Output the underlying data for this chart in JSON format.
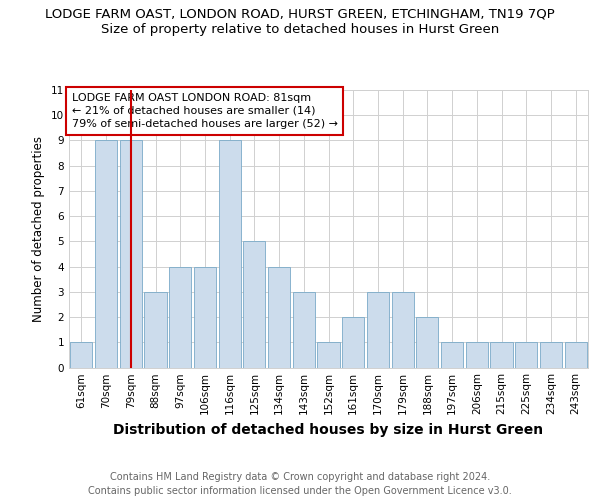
{
  "title": "LODGE FARM OAST, LONDON ROAD, HURST GREEN, ETCHINGHAM, TN19 7QP",
  "subtitle": "Size of property relative to detached houses in Hurst Green",
  "xlabel": "Distribution of detached houses by size in Hurst Green",
  "ylabel": "Number of detached properties",
  "categories": [
    "61sqm",
    "70sqm",
    "79sqm",
    "88sqm",
    "97sqm",
    "106sqm",
    "116sqm",
    "125sqm",
    "134sqm",
    "143sqm",
    "152sqm",
    "161sqm",
    "170sqm",
    "179sqm",
    "188sqm",
    "197sqm",
    "206sqm",
    "215sqm",
    "225sqm",
    "234sqm",
    "243sqm"
  ],
  "values": [
    1,
    9,
    9,
    3,
    4,
    4,
    9,
    5,
    4,
    3,
    1,
    2,
    3,
    3,
    2,
    1,
    1,
    1,
    1,
    1,
    1
  ],
  "bar_color": "#ccdcec",
  "bar_edge_color": "#7aaac8",
  "highlight_bar_index": 2,
  "highlight_line_color": "#cc0000",
  "ylim": [
    0,
    11
  ],
  "yticks": [
    0,
    1,
    2,
    3,
    4,
    5,
    6,
    7,
    8,
    9,
    10,
    11
  ],
  "annotation_text": "LODGE FARM OAST LONDON ROAD: 81sqm\n← 21% of detached houses are smaller (14)\n79% of semi-detached houses are larger (52) →",
  "footer_line1": "Contains HM Land Registry data © Crown copyright and database right 2024.",
  "footer_line2": "Contains public sector information licensed under the Open Government Licence v3.0.",
  "title_fontsize": 9.5,
  "subtitle_fontsize": 9.5,
  "xlabel_fontsize": 10,
  "ylabel_fontsize": 8.5,
  "tick_fontsize": 7.5,
  "annotation_fontsize": 8,
  "footer_fontsize": 7,
  "background_color": "#ffffff",
  "grid_color": "#d0d0d0"
}
